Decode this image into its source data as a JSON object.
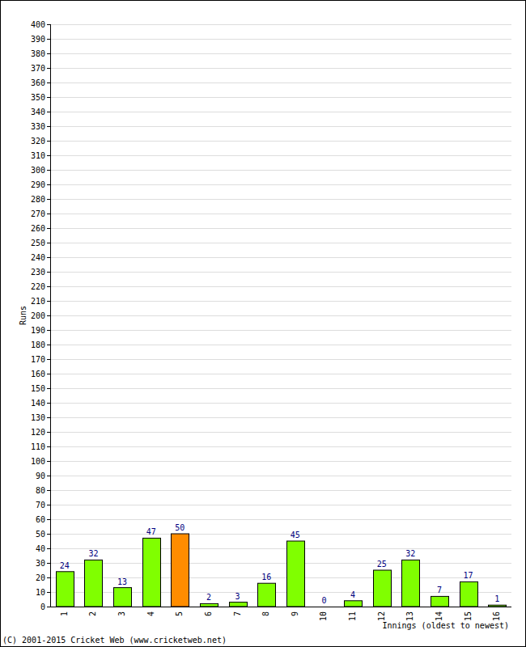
{
  "chart_data": {
    "type": "bar",
    "x_label": "Innings (oldest to newest)",
    "y_label": "Runs",
    "annotations": [
      "(C) 2001-2015 Cricket Web (www.cricketweb.net)"
    ],
    "categories": [
      "1",
      "2",
      "3",
      "4",
      "5",
      "6",
      "7",
      "8",
      "9",
      "10",
      "11",
      "12",
      "13",
      "14",
      "15",
      "16"
    ],
    "values": [
      24,
      32,
      13,
      47,
      50,
      2,
      3,
      16,
      45,
      0,
      4,
      25,
      32,
      7,
      17,
      1
    ],
    "colors": [
      "#80ff00",
      "#80ff00",
      "#80ff00",
      "#80ff00",
      "#ff8c00",
      "#80ff00",
      "#80ff00",
      "#80ff00",
      "#80ff00",
      "#80ff00",
      "#80ff00",
      "#80ff00",
      "#80ff00",
      "#80ff00",
      "#80ff00",
      "#80ff00"
    ],
    "ylim": [
      0,
      400
    ],
    "yticks": [
      0,
      10,
      20,
      30,
      40,
      50,
      60,
      70,
      80,
      90,
      100,
      110,
      120,
      130,
      140,
      150,
      160,
      170,
      180,
      190,
      200,
      210,
      220,
      230,
      240,
      250,
      260,
      270,
      280,
      290,
      300,
      310,
      320,
      330,
      340,
      350,
      360,
      370,
      380,
      390,
      400
    ],
    "grid": true,
    "data_labels": true
  }
}
